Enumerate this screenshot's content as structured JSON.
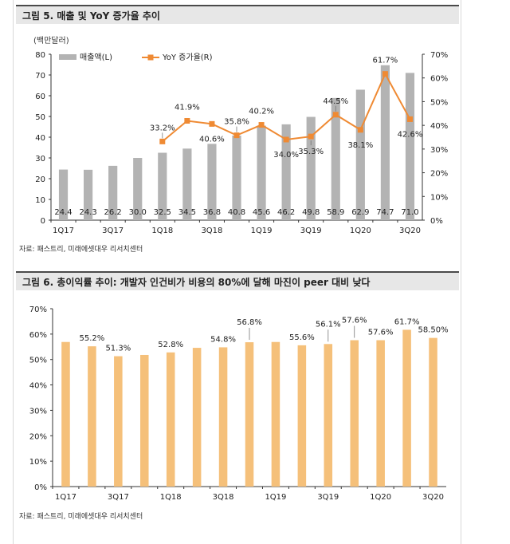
{
  "figures": [
    {
      "title": "그림 5. 매출 및 YoY 증가율 추이",
      "source": "자료: 패스트리, 미래에셋대우 리서치센터"
    },
    {
      "title": "그림 6. 총이익률 추이: 개발자 인건비가 비용의 80%에 달해 마진이 peer 대비 낮다",
      "source": "자료: 패스트리, 미래에셋대우 리서치센터"
    }
  ],
  "chart_data": [
    {
      "type": "bar+line",
      "title": "그림 5. 매출 및 YoY 증가율 추이",
      "unit_label": "(백만달러)",
      "categories": [
        "1Q17",
        "2Q17",
        "3Q17",
        "4Q17",
        "1Q18",
        "2Q18",
        "3Q18",
        "4Q18",
        "1Q19",
        "2Q19",
        "3Q19",
        "4Q19",
        "1Q20",
        "2Q20",
        "3Q20"
      ],
      "tick_labels": [
        "1Q17",
        "",
        "3Q17",
        "",
        "1Q18",
        "",
        "3Q18",
        "",
        "1Q19",
        "",
        "3Q19",
        "",
        "1Q20",
        "",
        "3Q20"
      ],
      "series": [
        {
          "name": "매출액(L)",
          "type": "bar",
          "axis": "left",
          "color": "#b3b3b3",
          "values": [
            24.4,
            24.3,
            26.2,
            30.0,
            32.5,
            34.5,
            36.8,
            40.8,
            45.6,
            46.2,
            49.8,
            58.9,
            62.9,
            74.7,
            71.0
          ],
          "labels": [
            "24.4",
            "24.3",
            "26.2",
            "30.0",
            "32.5",
            "34.5",
            "36.8",
            "40.8",
            "45.6",
            "46.2",
            "49.8",
            "58.9",
            "62.9",
            "74.7",
            "71.0"
          ]
        },
        {
          "name": "YoY 증가율(R)",
          "type": "line",
          "axis": "right",
          "color": "#ef8a33",
          "values": [
            null,
            null,
            null,
            null,
            33.2,
            41.9,
            40.6,
            35.8,
            40.2,
            34.0,
            35.3,
            44.5,
            38.1,
            61.7,
            42.6
          ],
          "labels": [
            "",
            "",
            "",
            "",
            "33.2%",
            "41.9%",
            "40.6%",
            "35.8%",
            "40.2%",
            "34.0%",
            "35.3%",
            "44.5%",
            "38.1%",
            "61.7%",
            "42.6%"
          ]
        }
      ],
      "ylim_left": [
        0,
        80
      ],
      "yticks_left": [
        "0",
        "10",
        "20",
        "30",
        "40",
        "50",
        "60",
        "70",
        "80"
      ],
      "ylim_right": [
        0,
        70
      ],
      "yticks_right": [
        "0%",
        "10%",
        "20%",
        "30%",
        "40%",
        "50%",
        "60%",
        "70%"
      ],
      "legend": "top-left",
      "grid": false
    },
    {
      "type": "bar",
      "title": "그림 6. 총이익률 추이: 개발자 인건비가 비용의 80%에 달해 마진이 peer 대비 낮다",
      "categories": [
        "1Q17",
        "2Q17",
        "3Q17",
        "4Q17",
        "1Q18",
        "2Q18",
        "3Q18",
        "4Q18",
        "1Q19",
        "2Q19",
        "3Q19",
        "4Q19",
        "1Q20",
        "2Q20",
        "3Q20"
      ],
      "tick_labels": [
        "1Q17",
        "",
        "3Q17",
        "",
        "1Q18",
        "",
        "3Q18",
        "",
        "1Q19",
        "",
        "3Q19",
        "",
        "1Q20",
        "",
        "3Q20"
      ],
      "values": [
        56.9,
        55.2,
        51.3,
        51.8,
        52.8,
        54.6,
        54.8,
        56.8,
        56.9,
        55.6,
        56.1,
        57.6,
        57.6,
        61.7,
        58.5
      ],
      "labels": [
        "",
        "55.2%",
        "51.3%",
        "",
        "52.8%",
        "",
        "54.8%",
        "56.8%",
        "",
        "55.6%",
        "56.1%",
        "57.6%",
        "57.6%",
        "61.7%",
        "58.50%"
      ],
      "color": "#f5c07a",
      "ylim": [
        0,
        70
      ],
      "yticks": [
        "0%",
        "10%",
        "20%",
        "30%",
        "40%",
        "50%",
        "60%",
        "70%"
      ],
      "grid": false
    }
  ]
}
